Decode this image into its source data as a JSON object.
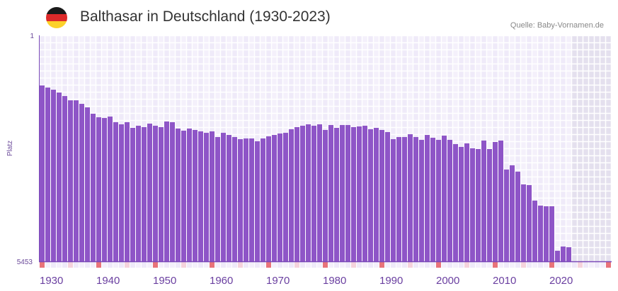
{
  "header": {
    "title": "Balthasar in Deutschland (1930-2023)",
    "source": "Quelle: Baby-Vornamen.de",
    "flag_icon": "germany-flag-icon"
  },
  "colors": {
    "bar": "#8e55c7",
    "axis": "#7a4ab8",
    "decade_marker": "#e8737a",
    "half_marker": "#f5d3dc",
    "grid_a": "#efeaf9",
    "grid_b": "#f4f0fb",
    "future": "#e4e0ee"
  },
  "chart_data": {
    "type": "bar",
    "title": "Balthasar in Deutschland (1930-2023)",
    "xlabel": "",
    "ylabel": "Platz",
    "ylim": [
      1,
      5453
    ],
    "y_inverted": true,
    "y_tick_labels": [
      "1",
      "5453"
    ],
    "x_range": [
      1930,
      2030
    ],
    "x_tick_labels": [
      "1930",
      "1940",
      "1950",
      "1960",
      "1970",
      "1980",
      "1990",
      "2000",
      "2010",
      "2020"
    ],
    "x_ticks": [
      1930,
      1940,
      1950,
      1960,
      1970,
      1980,
      1990,
      2000,
      2010,
      2020
    ],
    "grid": true,
    "categories": [
      1930,
      1931,
      1932,
      1933,
      1934,
      1935,
      1936,
      1937,
      1938,
      1939,
      1940,
      1941,
      1942,
      1943,
      1944,
      1945,
      1946,
      1947,
      1948,
      1949,
      1950,
      1951,
      1952,
      1953,
      1954,
      1955,
      1956,
      1957,
      1958,
      1959,
      1960,
      1961,
      1962,
      1963,
      1964,
      1965,
      1966,
      1967,
      1968,
      1969,
      1970,
      1971,
      1972,
      1973,
      1974,
      1975,
      1976,
      1977,
      1978,
      1979,
      1980,
      1981,
      1982,
      1983,
      1984,
      1985,
      1986,
      1987,
      1988,
      1989,
      1990,
      1991,
      1992,
      1993,
      1994,
      1995,
      1996,
      1997,
      1998,
      1999,
      2000,
      2001,
      2002,
      2003,
      2004,
      2005,
      2006,
      2007,
      2008,
      2009,
      2010,
      2011,
      2012,
      2013,
      2014,
      2015,
      2016,
      2017,
      2018,
      2019,
      2020,
      2021,
      2022,
      2023
    ],
    "values": [
      1210,
      1261,
      1313,
      1381,
      1466,
      1569,
      1569,
      1654,
      1739,
      1892,
      1978,
      1995,
      1961,
      2097,
      2148,
      2097,
      2233,
      2182,
      2216,
      2131,
      2182,
      2216,
      2080,
      2097,
      2250,
      2301,
      2250,
      2284,
      2318,
      2353,
      2318,
      2455,
      2353,
      2404,
      2455,
      2506,
      2489,
      2489,
      2557,
      2489,
      2438,
      2404,
      2370,
      2353,
      2267,
      2216,
      2182,
      2148,
      2182,
      2148,
      2284,
      2165,
      2233,
      2165,
      2165,
      2216,
      2199,
      2182,
      2267,
      2233,
      2284,
      2335,
      2506,
      2455,
      2455,
      2387,
      2455,
      2523,
      2404,
      2472,
      2523,
      2421,
      2523,
      2625,
      2693,
      2608,
      2727,
      2744,
      2540,
      2744,
      2574,
      2540,
      3239,
      3137,
      3290,
      3597,
      3614,
      3988,
      4108,
      4125,
      4125,
      5198,
      5096,
      5113
    ]
  }
}
